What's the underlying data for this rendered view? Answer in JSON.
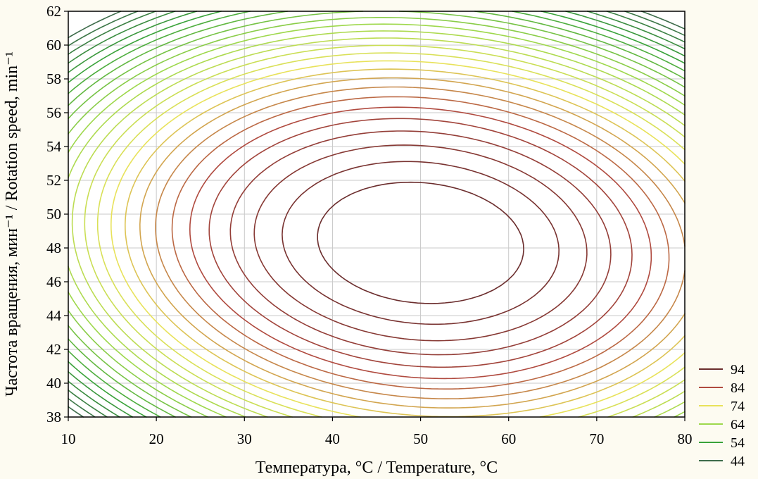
{
  "chart_data": {
    "type": "contour",
    "xlabel": "Температура, °C / Temperature, °C",
    "ylabel": "Частота вращения, мин⁻¹ / Rotation speed, min⁻¹",
    "xlim": [
      10,
      80
    ],
    "ylim": [
      38,
      62
    ],
    "x_ticks": [
      10,
      20,
      30,
      40,
      50,
      60,
      70,
      80
    ],
    "y_ticks": [
      38,
      40,
      42,
      44,
      46,
      48,
      50,
      52,
      54,
      56,
      58,
      60,
      62
    ],
    "grid": true,
    "legend_position": "right-bottom",
    "optimum": {
      "x": 50,
      "y": 48.3,
      "value": 96.5
    },
    "contour_step": 2,
    "contour_levels": [
      44,
      46,
      48,
      50,
      52,
      54,
      56,
      58,
      60,
      62,
      64,
      66,
      68,
      70,
      72,
      74,
      76,
      78,
      80,
      82,
      84,
      86,
      88,
      90,
      92,
      94
    ],
    "legend": [
      {
        "label": "94",
        "color": "#6b2d2d"
      },
      {
        "label": "84",
        "color": "#b04a3f"
      },
      {
        "label": "74",
        "color": "#e8e25a"
      },
      {
        "label": "64",
        "color": "#9ed84c"
      },
      {
        "label": "54",
        "color": "#3aa33a"
      },
      {
        "label": "44",
        "color": "#3d6b4a"
      }
    ],
    "surface_sample": [
      {
        "x": 10,
        "y": 48,
        "value": 74
      },
      {
        "x": 22,
        "y": 48,
        "value": 84
      },
      {
        "x": 10,
        "y": 62,
        "value": 44
      },
      {
        "x": 10,
        "y": 38,
        "value": 54
      },
      {
        "x": 50,
        "y": 62,
        "value": 80
      },
      {
        "x": 50,
        "y": 38,
        "value": 84
      }
    ]
  }
}
